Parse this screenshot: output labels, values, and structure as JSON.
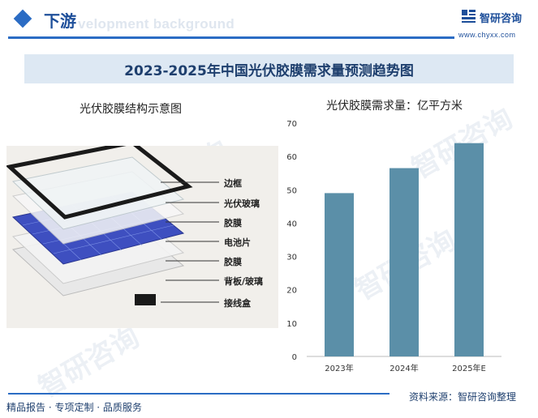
{
  "header": {
    "section_title": "下游",
    "watermark_text": "velopment background",
    "logo_text": "智研咨询",
    "logo_url": "www.chyxx.com",
    "logo_icon": "zhiyan-logo-icon"
  },
  "banner": {
    "title": "2023-2025年中国光伏胶膜需求量预测趋势图"
  },
  "left_panel": {
    "title": "光伏胶膜结构示意图",
    "layers": [
      "边框",
      "光伏玻璃",
      "胶膜",
      "电池片",
      "胶膜",
      "背板/玻璃",
      "接线盒"
    ]
  },
  "watermark": {
    "text": "智研咨询"
  },
  "chart_data": {
    "type": "bar",
    "title": "光伏胶膜需求量：亿平方米",
    "categories": [
      "2023年",
      "2024年",
      "2025年E"
    ],
    "values": [
      49,
      56.5,
      64
    ],
    "ylim": [
      0,
      70
    ],
    "yticks": [
      0,
      10,
      20,
      30,
      40,
      50,
      60,
      70
    ],
    "bar_color": "#5b8fa8",
    "grid": false
  },
  "footer": {
    "left": "精品报告 · 专项定制 · 品质服务",
    "right": "资料来源：智研咨询整理"
  },
  "colors": {
    "accent": "#2b6cc4",
    "banner_bg": "#dde8f3",
    "bar": "#5b8fa8"
  }
}
